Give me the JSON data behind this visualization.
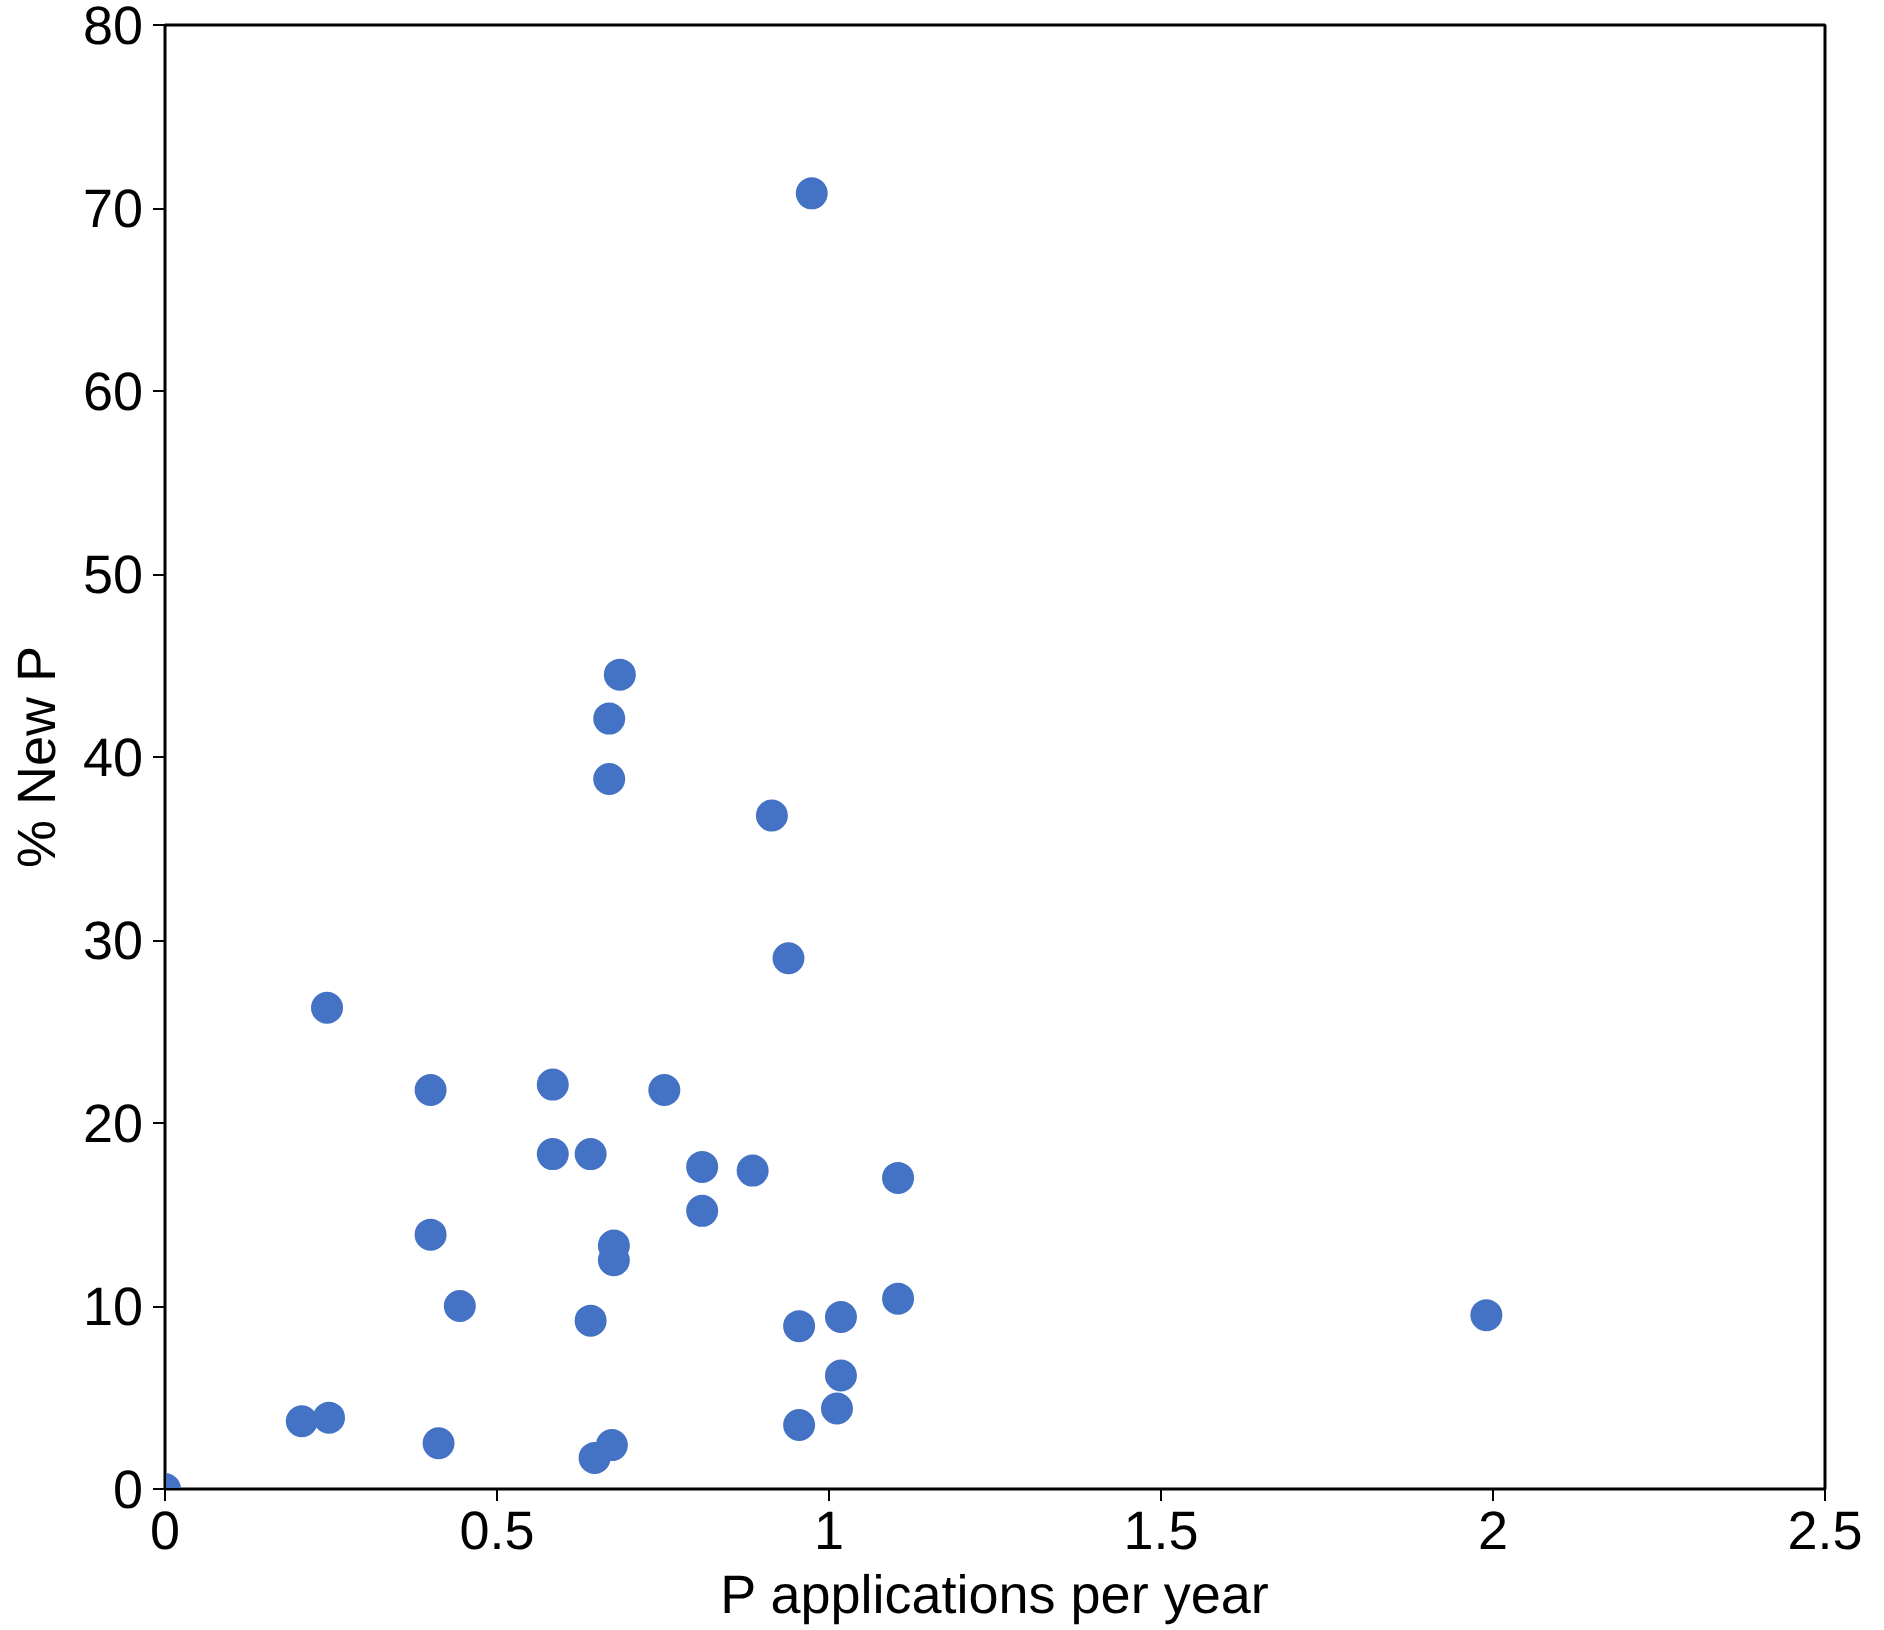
{
  "chart_data": {
    "type": "scatter",
    "xlabel": "P applications per year",
    "ylabel": "% New P",
    "x": [
      0,
      0.974,
      0.685,
      0.669,
      0.669,
      0.914,
      0.939,
      0.244,
      0.4,
      0.584,
      0.752,
      0.584,
      0.641,
      0.809,
      0.885,
      1.104,
      0.809,
      0.4,
      0.676,
      0.676,
      0.444,
      1.104,
      1.99,
      0.641,
      1.018,
      0.955,
      1.018,
      0.206,
      0.247,
      1.012,
      0.955,
      0.412,
      0.673,
      0.647
    ],
    "values": [
      0,
      70.8,
      44.5,
      42.1,
      38.8,
      36.8,
      29.0,
      26.3,
      21.8,
      22.1,
      21.8,
      18.3,
      18.3,
      17.6,
      17.4,
      17.0,
      15.2,
      13.9,
      13.3,
      12.5,
      10.0,
      10.4,
      9.5,
      9.2,
      9.4,
      8.9,
      6.2,
      3.7,
      3.9,
      4.4,
      3.5,
      2.5,
      2.4,
      1.7
    ],
    "color": "#4472c4",
    "marker": "circle",
    "xlim": [
      0,
      2.5
    ],
    "xticks": [
      0,
      0.5,
      1,
      1.5,
      2,
      2.5
    ],
    "ylim": [
      0,
      80
    ],
    "yticks": [
      0,
      10,
      20,
      30,
      40,
      50,
      60,
      70,
      80
    ],
    "grid": false
  }
}
